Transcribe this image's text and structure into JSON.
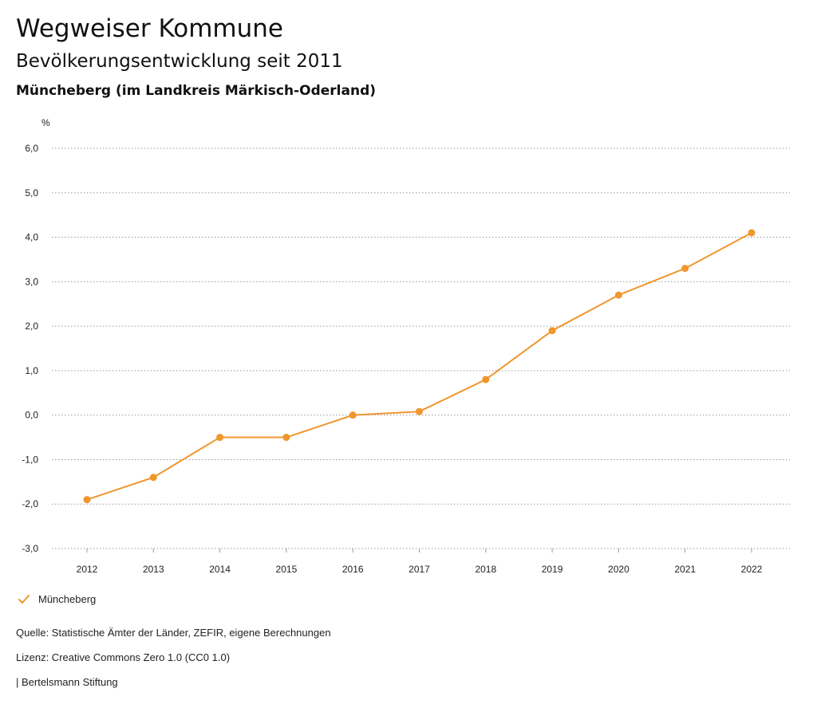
{
  "header": {
    "title": "Wegweiser Kommune",
    "subtitle": "Bevölkerungsentwicklung seit 2011",
    "region": "Müncheberg (im Landkreis Märkisch-Oderland)"
  },
  "chart_data": {
    "type": "line",
    "unit_label": "%",
    "categories": [
      "2012",
      "2013",
      "2014",
      "2015",
      "2016",
      "2017",
      "2018",
      "2019",
      "2020",
      "2021",
      "2022"
    ],
    "series": [
      {
        "name": "Müncheberg",
        "color": "#f0962d",
        "values": [
          -1.9,
          -1.4,
          -0.5,
          -0.5,
          0.0,
          0.08,
          0.8,
          1.9,
          2.7,
          3.3,
          4.1
        ]
      }
    ],
    "yticks": [
      6.0,
      5.0,
      4.0,
      3.0,
      2.0,
      1.0,
      0.0,
      -1.0,
      -2.0,
      -3.0
    ],
    "ytick_labels": [
      "6,0",
      "5,0",
      "4,0",
      "3,0",
      "2,0",
      "1,0",
      "0,0",
      "-1,0",
      "-2,0",
      "-3,0"
    ],
    "ylim": [
      -3.0,
      6.0
    ],
    "grid": true,
    "legend_position": "bottom-left"
  },
  "legend": {
    "label": "Müncheberg",
    "color": "#f0962d"
  },
  "footer": {
    "source": "Quelle: Statistische Ämter der Länder, ZEFIR, eigene Berechnungen",
    "license": "Lizenz: Creative Commons Zero 1.0 (CC0 1.0)",
    "publisher": "| Bertelsmann Stiftung"
  }
}
